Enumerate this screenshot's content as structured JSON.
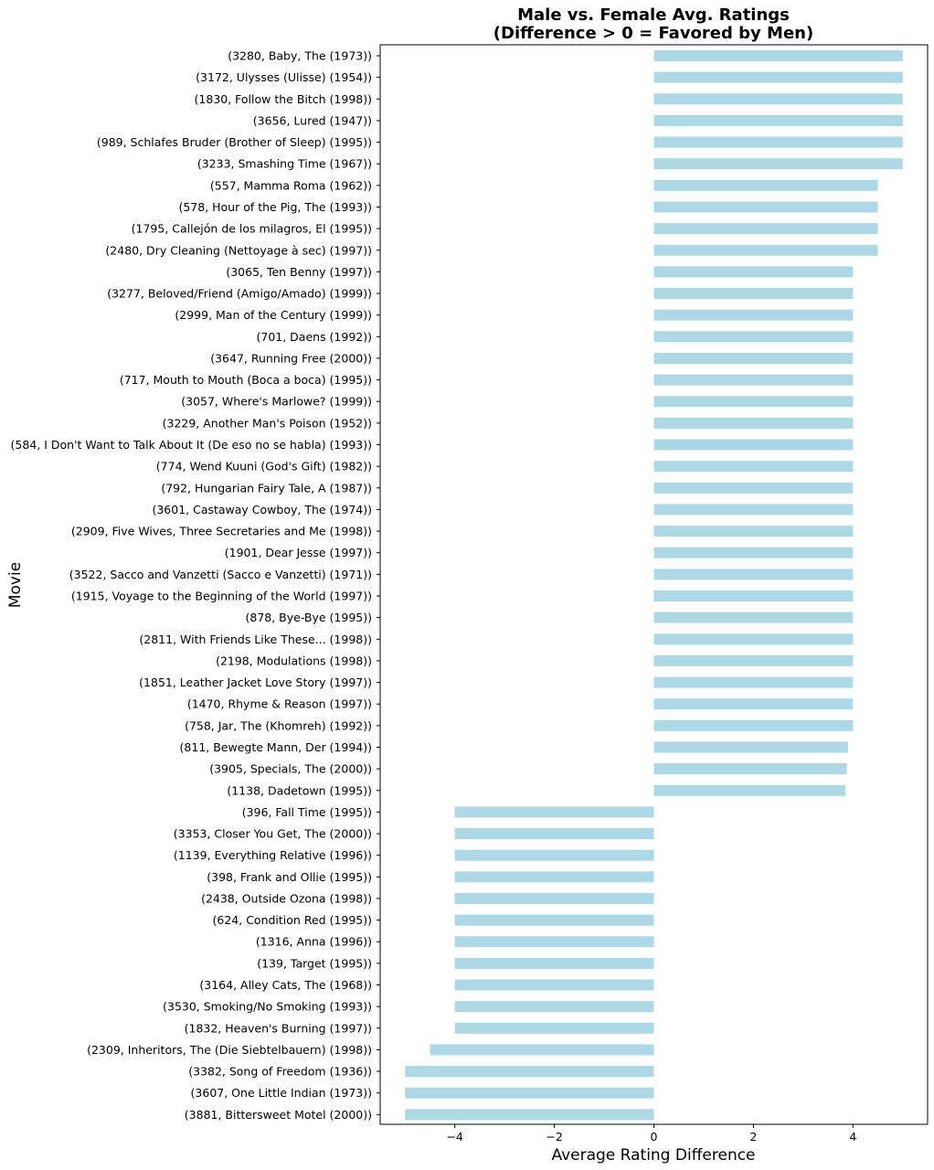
{
  "chart_data": {
    "type": "bar",
    "orientation": "horizontal",
    "title": "Male vs. Female Avg. Ratings",
    "subtitle": "(Difference > 0 = Favored by Men)",
    "xlabel": "Average Rating Difference",
    "ylabel": "Movie",
    "xlim": [
      -5.5,
      5.5
    ],
    "xticks": [
      -4,
      -2,
      0,
      2,
      4
    ],
    "xtick_labels": [
      "−4",
      "−2",
      "0",
      "2",
      "4"
    ],
    "grid": false,
    "bar_color": "#add8e6",
    "categories": [
      "(3280, Baby, The (1973))",
      "(3172, Ulysses (Ulisse) (1954))",
      "(1830, Follow the Bitch (1998))",
      "(3656, Lured (1947))",
      "(989, Schlafes Bruder (Brother of Sleep) (1995))",
      "(3233, Smashing Time (1967))",
      "(557, Mamma Roma (1962))",
      "(578, Hour of the Pig, The (1993))",
      "(1795, Callejón de los milagros, El (1995))",
      "(2480, Dry Cleaning (Nettoyage à sec) (1997))",
      "(3065, Ten Benny (1997))",
      "(3277, Beloved/Friend (Amigo/Amado) (1999))",
      "(2999, Man of the Century (1999))",
      "(701, Daens (1992))",
      "(3647, Running Free (2000))",
      "(717, Mouth to Mouth (Boca a boca) (1995))",
      "(3057, Where's Marlowe? (1999))",
      "(3229, Another Man's Poison (1952))",
      "(584, I Don't Want to Talk About It (De eso no se habla) (1993))",
      "(774, Wend Kuuni (God's Gift) (1982))",
      "(792, Hungarian Fairy Tale, A (1987))",
      "(3601, Castaway Cowboy, The (1974))",
      "(2909, Five Wives, Three Secretaries and Me (1998))",
      "(1901, Dear Jesse (1997))",
      "(3522, Sacco and Vanzetti (Sacco e Vanzetti) (1971))",
      "(1915, Voyage to the Beginning of the World (1997))",
      "(878, Bye-Bye (1995))",
      "(2811, With Friends Like These... (1998))",
      "(2198, Modulations (1998))",
      "(1851, Leather Jacket Love Story (1997))",
      "(1470, Rhyme & Reason (1997))",
      "(758, Jar, The (Khomreh) (1992))",
      "(811, Bewegte Mann, Der (1994))",
      "(3905, Specials, The (2000))",
      "(1138, Dadetown (1995))",
      "(396, Fall Time (1995))",
      "(3353, Closer You Get, The (2000))",
      "(1139, Everything Relative (1996))",
      "(398, Frank and Ollie (1995))",
      "(2438, Outside Ozona (1998))",
      "(624, Condition Red (1995))",
      "(1316, Anna (1996))",
      "(139, Target (1995))",
      "(3164, Alley Cats, The (1968))",
      "(3530, Smoking/No Smoking (1993))",
      "(1832, Heaven's Burning (1997))",
      "(2309, Inheritors, The (Die Siebtelbauern) (1998))",
      "(3382, Song of Freedom (1936))",
      "(3607, One Little Indian (1973))",
      "(3881, Bittersweet Motel (2000))"
    ],
    "values": [
      5.0,
      5.0,
      5.0,
      5.0,
      5.0,
      5.0,
      4.5,
      4.5,
      4.5,
      4.5,
      4.0,
      4.0,
      4.0,
      4.0,
      4.0,
      4.0,
      4.0,
      4.0,
      4.0,
      4.0,
      4.0,
      4.0,
      4.0,
      4.0,
      4.0,
      4.0,
      4.0,
      4.0,
      4.0,
      4.0,
      4.0,
      4.0,
      3.9,
      3.875,
      3.85,
      -4.0,
      -4.0,
      -4.0,
      -4.0,
      -4.0,
      -4.0,
      -4.0,
      -4.0,
      -4.0,
      -4.0,
      -4.0,
      -4.5,
      -5.0,
      -5.0,
      -5.0
    ]
  }
}
